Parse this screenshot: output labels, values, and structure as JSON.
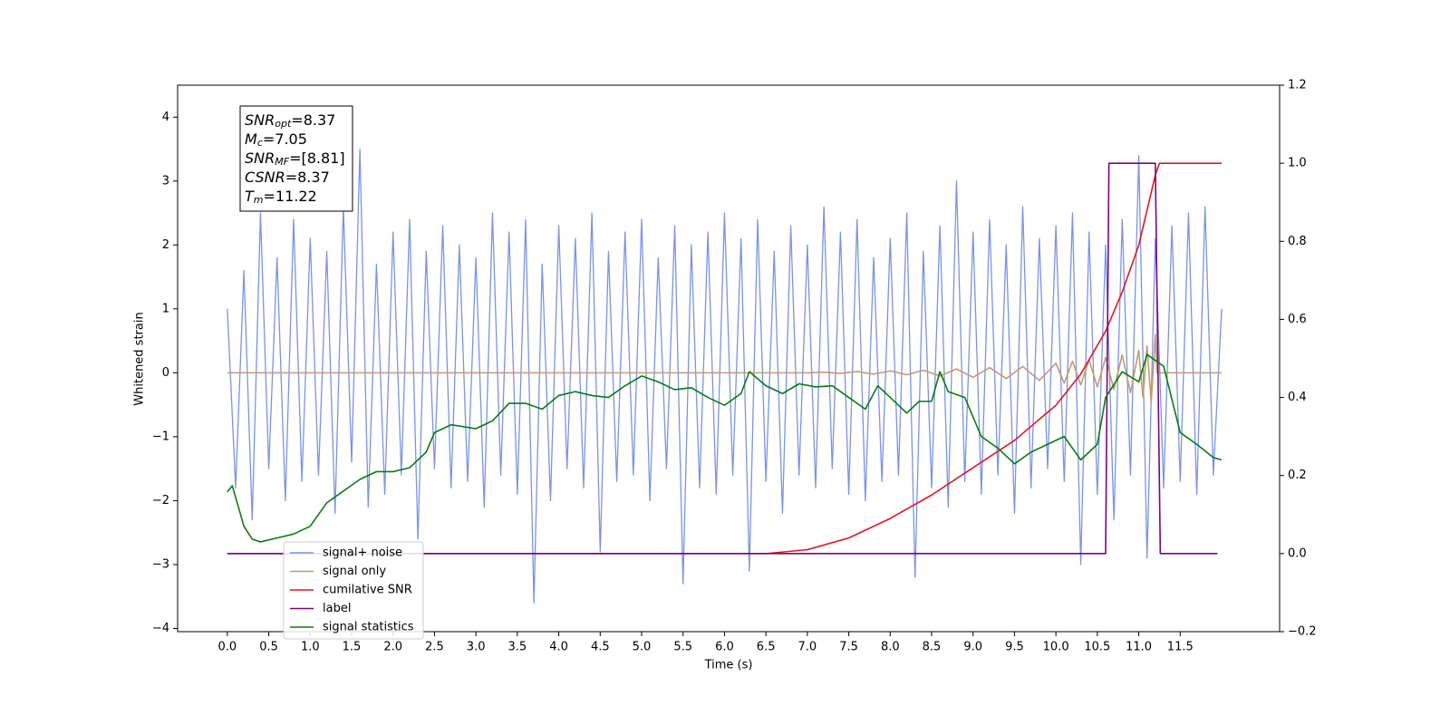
{
  "chart_data": {
    "type": "line",
    "xlabel": "Time (s)",
    "ylabel": "Whitened strain",
    "xlim": [
      -0.6,
      12.7
    ],
    "ylim": [
      -4.05,
      4.5
    ],
    "y2lim": [
      -0.2,
      1.2
    ],
    "xticks": [
      {
        "value": 0,
        "label": "0.0"
      },
      0.5,
      {
        "value": 1,
        "label": "1.0"
      },
      1.5,
      {
        "value": 2,
        "label": "2.0"
      },
      2.5,
      {
        "value": 3,
        "label": "3.0"
      },
      3.5,
      {
        "value": 4,
        "label": "4.0"
      },
      4.5,
      {
        "value": 5,
        "label": "5.0"
      },
      5.5,
      {
        "value": 6,
        "label": "6.0"
      },
      6.5,
      {
        "value": 7,
        "label": "7.0"
      },
      7.5,
      {
        "value": 8,
        "label": "8.0"
      },
      8.5,
      {
        "value": 9,
        "label": "9.0"
      },
      9.5,
      {
        "value": 10,
        "label": "10.0"
      },
      10.5,
      {
        "value": 11,
        "label": "11.0"
      },
      11.5
    ],
    "yticks": [
      {
        "value": -4,
        "label": "−4"
      },
      {
        "value": -3,
        "label": "−3"
      },
      {
        "value": -2,
        "label": "−2"
      },
      {
        "value": -1,
        "label": "−1"
      },
      0,
      1,
      2,
      3,
      4
    ],
    "y2ticks": [
      {
        "value": -0.2,
        "label": "−0.2"
      },
      {
        "value": 0,
        "label": "0.0"
      },
      0.2,
      0.4,
      0.6,
      {
        "value": 0.8,
        "label": "0.8"
      },
      {
        "value": 1,
        "label": "1.0"
      },
      1.2
    ],
    "legend": "lower left",
    "annotations": [
      {
        "main": "SNR",
        "sub": "opt",
        "rest": "=8.37"
      },
      {
        "main": "M",
        "sub": "c",
        "rest": "=7.05"
      },
      {
        "main": "SNR",
        "sub": "MF",
        "rest": "=[8.81]"
      },
      {
        "main": "CSNR",
        "rest": "=8.37"
      },
      {
        "main": "T",
        "sub": "m",
        "rest": "=11.22"
      }
    ],
    "series": [
      {
        "name": "signal+ noise",
        "color": "#7993e8",
        "x": [
          0.0,
          0.1,
          0.2,
          0.3,
          0.4,
          0.5,
          0.6,
          0.7,
          0.8,
          0.9,
          1.0,
          1.1,
          1.2,
          1.3,
          1.4,
          1.5,
          1.6,
          1.7,
          1.8,
          1.9,
          2.0,
          2.1,
          2.2,
          2.3,
          2.4,
          2.5,
          2.6,
          2.7,
          2.8,
          2.9,
          3.0,
          3.1,
          3.2,
          3.3,
          3.4,
          3.5,
          3.6,
          3.7,
          3.8,
          3.9,
          4.0,
          4.1,
          4.2,
          4.3,
          4.4,
          4.5,
          4.6,
          4.7,
          4.8,
          4.9,
          5.0,
          5.1,
          5.2,
          5.3,
          5.4,
          5.5,
          5.6,
          5.7,
          5.8,
          5.9,
          6.0,
          6.1,
          6.2,
          6.3,
          6.4,
          6.5,
          6.6,
          6.7,
          6.8,
          6.9,
          7.0,
          7.1,
          7.2,
          7.3,
          7.4,
          7.5,
          7.6,
          7.7,
          7.8,
          7.9,
          8.0,
          8.1,
          8.2,
          8.3,
          8.4,
          8.5,
          8.6,
          8.7,
          8.8,
          8.9,
          9.0,
          9.1,
          9.2,
          9.3,
          9.4,
          9.5,
          9.6,
          9.7,
          9.8,
          9.9,
          10.0,
          10.1,
          10.2,
          10.3,
          10.4,
          10.5,
          10.6,
          10.7,
          10.8,
          10.9,
          11.0,
          11.1,
          11.2,
          11.3,
          11.4,
          11.5,
          11.6,
          11.7,
          11.8,
          11.9,
          12.0
        ],
        "values": [
          1.0,
          -1.8,
          1.6,
          -2.3,
          2.5,
          -1.5,
          1.8,
          -2.0,
          2.4,
          -1.7,
          2.1,
          -1.6,
          1.9,
          -2.2,
          2.6,
          -1.4,
          3.5,
          -2.1,
          1.7,
          -1.9,
          2.2,
          -1.6,
          2.4,
          -2.6,
          1.9,
          -1.5,
          2.3,
          -1.8,
          2.0,
          -1.7,
          1.8,
          -2.1,
          2.5,
          -1.6,
          2.2,
          -1.9,
          2.4,
          -3.6,
          1.7,
          -2.0,
          2.3,
          -1.5,
          2.1,
          -1.8,
          2.5,
          -2.8,
          1.9,
          -1.7,
          2.2,
          -1.6,
          2.4,
          -2.0,
          1.8,
          -1.5,
          2.3,
          -3.3,
          2.0,
          -1.8,
          2.2,
          -1.9,
          2.5,
          -1.6,
          2.1,
          -3.1,
          2.4,
          -1.7,
          1.9,
          -2.2,
          2.3,
          -1.6,
          2.0,
          -1.8,
          2.6,
          -1.5,
          2.2,
          -1.9,
          2.4,
          -2.0,
          1.8,
          -1.7,
          2.1,
          -1.6,
          2.5,
          -3.2,
          1.9,
          -1.8,
          2.3,
          -2.1,
          3.0,
          -1.7,
          2.2,
          -1.9,
          2.4,
          -1.6,
          2.0,
          -2.2,
          2.6,
          -1.8,
          2.1,
          -1.5,
          2.3,
          -1.7,
          2.5,
          -3.0,
          2.2,
          -1.9,
          2.0,
          -2.3,
          2.4,
          -1.6,
          3.4,
          -2.9,
          2.1,
          -1.8,
          2.3,
          -1.7,
          2.5,
          -1.9,
          2.6,
          -1.6,
          1.0
        ]
      },
      {
        "name": "signal only",
        "color": "#c49a6c",
        "x": [
          0.0,
          7.0,
          7.2,
          7.4,
          7.6,
          7.8,
          8.0,
          8.2,
          8.4,
          8.6,
          8.8,
          9.0,
          9.2,
          9.4,
          9.6,
          9.8,
          10.0,
          10.1,
          10.2,
          10.3,
          10.4,
          10.5,
          10.6,
          10.7,
          10.8,
          10.9,
          11.0,
          11.05,
          11.1,
          11.15,
          11.2,
          11.22,
          12.0
        ],
        "values": [
          0,
          0,
          0.01,
          -0.01,
          0.02,
          -0.02,
          0.03,
          -0.03,
          0.04,
          -0.05,
          0.06,
          -0.07,
          0.08,
          -0.09,
          0.1,
          -0.12,
          0.15,
          -0.16,
          0.18,
          -0.19,
          0.2,
          -0.22,
          0.24,
          -0.26,
          0.28,
          -0.31,
          0.35,
          -0.38,
          0.42,
          -0.47,
          0.6,
          0,
          0
        ]
      },
      {
        "name": "cumilative SNR",
        "color": "#e8141a",
        "axis": "y2",
        "x": [
          0.0,
          6.5,
          7.0,
          7.5,
          8.0,
          8.5,
          9.0,
          9.5,
          10.0,
          10.3,
          10.6,
          10.8,
          11.0,
          11.2,
          11.25,
          12.0
        ],
        "values": [
          0,
          0,
          0.01,
          0.04,
          0.09,
          0.15,
          0.22,
          0.29,
          0.38,
          0.46,
          0.57,
          0.67,
          0.79,
          0.97,
          1.0,
          1.0
        ]
      },
      {
        "name": "label",
        "color": "#800080",
        "axis": "y2",
        "x": [
          0.0,
          10.6,
          10.64,
          11.2,
          11.26,
          11.95
        ],
        "values": [
          0,
          0,
          1,
          1,
          0,
          0
        ]
      },
      {
        "name": "signal statistics",
        "color": "#0a7d0a",
        "axis": "y2",
        "x": [
          0.0,
          0.06,
          0.2,
          0.3,
          0.4,
          0.6,
          0.8,
          1.0,
          1.2,
          1.4,
          1.6,
          1.8,
          2.0,
          2.2,
          2.4,
          2.5,
          2.7,
          3.0,
          3.2,
          3.4,
          3.6,
          3.8,
          4.0,
          4.2,
          4.4,
          4.6,
          4.8,
          5.0,
          5.2,
          5.4,
          5.6,
          5.8,
          6.0,
          6.2,
          6.3,
          6.5,
          6.7,
          6.9,
          7.1,
          7.3,
          7.5,
          7.7,
          7.85,
          8.0,
          8.2,
          8.35,
          8.5,
          8.6,
          8.7,
          8.9,
          9.1,
          9.3,
          9.5,
          9.7,
          9.9,
          10.1,
          10.3,
          10.5,
          10.6,
          10.8,
          11.0,
          11.1,
          11.3,
          11.5,
          11.7,
          11.9,
          12.0
        ],
        "values": [
          0.158,
          0.174,
          0.07,
          0.037,
          0.03,
          0.04,
          0.05,
          0.07,
          0.13,
          0.16,
          0.19,
          0.21,
          0.21,
          0.22,
          0.26,
          0.31,
          0.33,
          0.32,
          0.34,
          0.385,
          0.385,
          0.37,
          0.405,
          0.415,
          0.405,
          0.4,
          0.43,
          0.455,
          0.44,
          0.42,
          0.425,
          0.4,
          0.38,
          0.41,
          0.466,
          0.43,
          0.41,
          0.435,
          0.427,
          0.43,
          0.4,
          0.37,
          0.43,
          0.4,
          0.36,
          0.39,
          0.39,
          0.466,
          0.415,
          0.4,
          0.3,
          0.27,
          0.23,
          0.26,
          0.28,
          0.3,
          0.24,
          0.28,
          0.4,
          0.466,
          0.44,
          0.51,
          0.48,
          0.31,
          0.28,
          0.246,
          0.24
        ]
      }
    ]
  }
}
